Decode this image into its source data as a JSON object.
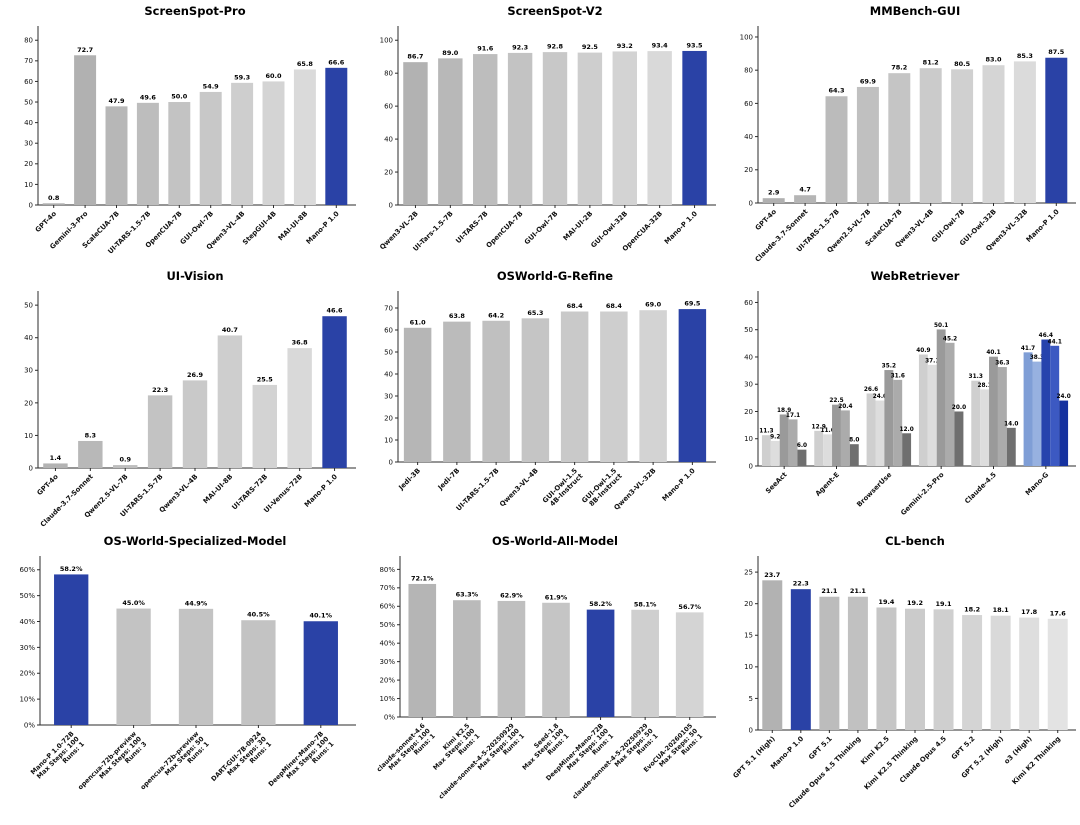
{
  "palette": {
    "highlight_blue": "#2a42a6",
    "axis_color": "#2b2b2b",
    "text_color": "#111111",
    "background": "#ffffff"
  },
  "chart_data": [
    {
      "id": "screenspot-pro",
      "type": "bar",
      "title": "ScreenSpot-Pro",
      "categories": [
        "GPT-4o",
        "Gemini-3-Pro",
        "ScaleCUA-7B",
        "UI-TARS-1.5-7B",
        "OpenCUA-7B",
        "GUI-Owl-7B",
        "Qwen3-VL-4B",
        "StepGUI-4B",
        "MAI-UI-8B",
        "Mano-P 1.0"
      ],
      "values": [
        0.8,
        72.7,
        47.9,
        49.6,
        50.0,
        54.9,
        59.3,
        60.0,
        65.8,
        66.6
      ],
      "highlight_indices": [
        9
      ],
      "ylim": [
        0,
        80
      ],
      "ytick_step": 10,
      "yscale_max": 84,
      "percent": false,
      "grid": false,
      "legend": "none",
      "gray_start": "#ababab",
      "gray_end": "#e0e0e0"
    },
    {
      "id": "screenspot-v2",
      "type": "bar",
      "title": "ScreenSpot-V2",
      "categories": [
        "Qwen3-VL-2B",
        "UI-Tars-1.5-7B",
        "UI-TARS-7B",
        "OpenCUA-7B",
        "GUI-Owl-7B",
        "MAI-UI-2B",
        "GUI-Owl-32B",
        "OpenCUA-32B",
        "Mano-P 1.0"
      ],
      "values": [
        86.7,
        89.0,
        91.6,
        92.3,
        92.8,
        92.5,
        93.2,
        93.4,
        93.5
      ],
      "highlight_indices": [
        8
      ],
      "ylim": [
        0,
        100
      ],
      "ytick_step": 20,
      "yscale_max": 105,
      "percent": false,
      "grid": false,
      "legend": "none",
      "gray_start": "#b2b2b2",
      "gray_end": "#dedede"
    },
    {
      "id": "mmbench-gui",
      "type": "bar",
      "title": "MMBench-GUI",
      "categories": [
        "GPT-4o",
        "Claude-3.7-Sonnet",
        "UI-TARS-1.5-7B",
        "Qwen2.5-VL-7B",
        "ScaleCUA-7B",
        "Qwen3-VL-4B",
        "GUI-Owl-7B",
        "GUI-Owl-32B",
        "Qwen3-VL-32B",
        "Mano-P 1.0"
      ],
      "values": [
        2.9,
        4.7,
        64.3,
        69.9,
        78.2,
        81.2,
        80.5,
        83.0,
        85.3,
        87.5
      ],
      "highlight_indices": [
        9
      ],
      "ylim": [
        0,
        100
      ],
      "ytick_step": 20,
      "yscale_max": 103,
      "percent": false,
      "grid": false,
      "legend": "none",
      "gray_start": "#b0b0b0",
      "gray_end": "#e0e0e0"
    },
    {
      "id": "ui-vision",
      "type": "bar",
      "title": "UI-Vision",
      "categories": [
        "GPT-4o",
        "Claude-3.7-Sonnet",
        "Qwen2.5-VL-7B",
        "UI-TARS-1.5-7B",
        "Qwen3-VL-4B",
        "MAI-UI-8B",
        "UI-TARS-72B",
        "UI-Venus-72B",
        "Mano-P 1.0"
      ],
      "values": [
        1.4,
        8.3,
        0.9,
        22.3,
        26.9,
        40.7,
        25.5,
        36.8,
        46.6
      ],
      "highlight_indices": [
        8
      ],
      "ylim": [
        0,
        50
      ],
      "ytick_step": 10,
      "yscale_max": 52.5,
      "percent": false,
      "grid": false,
      "legend": "none",
      "gray_start": "#b3b3b3",
      "gray_end": "#dedede"
    },
    {
      "id": "osworld-g-refine",
      "type": "bar",
      "title": "OSWorld-G-Refine",
      "categories": [
        "Jedi-3B",
        "Jedi-7B",
        "UI-TARS-1.5-7B",
        "Qwen3-VL-4B",
        "GUI-Owl-1.5\n4B-Instruct",
        "GUI-Owl-1.5\n8B-Instruct",
        "Qwen3-VL-32B",
        "Mano-P 1.0"
      ],
      "values": [
        61.0,
        63.8,
        64.2,
        65.3,
        68.4,
        68.4,
        69.0,
        69.5
      ],
      "highlight_indices": [
        7
      ],
      "ylim": [
        0,
        70
      ],
      "ytick_step": 10,
      "yscale_max": 75,
      "percent": false,
      "grid": false,
      "legend": "none",
      "gray_start": "#b6b6b6",
      "gray_end": "#d8d8d8"
    },
    {
      "id": "webretriever",
      "type": "grouped-bar",
      "title": "WebRetriever",
      "categories": [
        "SeeAct",
        "Agent-E",
        "BrowserUse",
        "Gemini-2.5-Pro",
        "Claude-4.5",
        "Mano-G"
      ],
      "series_values": [
        [
          11.3,
          9.2,
          18.9,
          17.1,
          6.0
        ],
        [
          12.9,
          11.6,
          22.5,
          20.4,
          8.0
        ],
        [
          26.6,
          24.0,
          35.2,
          31.6,
          12.0
        ],
        [
          40.9,
          37.1,
          50.1,
          45.2,
          20.0
        ],
        [
          31.3,
          28.1,
          40.1,
          36.3,
          14.0
        ],
        [
          41.7,
          38.3,
          46.4,
          44.1,
          24.0
        ]
      ],
      "highlight_groups": [
        5
      ],
      "group_gray_colors": [
        "#cfcfcf",
        "#dddddd",
        "#9a9a9a",
        "#ababab",
        "#6f6f6f"
      ],
      "group_highlight_colors": [
        "#7f9ed6",
        "#97b1e0",
        "#2643ad",
        "#3c59c2",
        "#16329f"
      ],
      "ylim": [
        0,
        60
      ],
      "ytick_step": 10,
      "yscale_max": 62,
      "percent": false,
      "grid": false,
      "legend": "none"
    },
    {
      "id": "os-world-specialized-model",
      "type": "bar",
      "title": "OS-World-Specialized-Model",
      "categories": [
        "Mano-P 1.0-72B\nMax Steps: 100\nRuns: 1",
        "opencua-72b-preview\nMax Steps: 100\nRuns: 3",
        "opencua-72b-preview\nMax Steps: 50\nRuns: 1",
        "DART-GUI-7B-0924\nMax Steps: 30\nRuns: 1",
        "DeepMiner-Mano-7B\nMax Steps: 100\nRuns: 1"
      ],
      "values": [
        58.2,
        45.0,
        44.9,
        40.5,
        40.1
      ],
      "highlight_indices": [
        0,
        4
      ],
      "ylim": [
        0,
        60
      ],
      "ytick_step": 10,
      "yscale_max": 63,
      "percent": true,
      "grid": false,
      "legend": "none",
      "gray_start": "#c3c3c3",
      "gray_end": "#c3c3c3"
    },
    {
      "id": "os-world-all-model",
      "type": "bar",
      "title": "OS-World-All-Model",
      "categories": [
        "claude-sonnet-4.6\nMax Steps: 100\nRuns: 1",
        "Kimi K2.5\nMax Steps: 100\nRuns: 1",
        "claude-sonnet-4-5-20250929\nMax Steps: 100\nRuns: 1",
        "Seed-1.8\nMax Steps: 100\nRuns: 1",
        "DeepMiner-Mano-72B\nMax Steps: 100\nRuns: 1",
        "claude-sonnet-4-5-20250929\nMax Steps: 50\nRuns: 1",
        "EvoCUA-20260105\nMax Steps: 50\nRuns: 1"
      ],
      "values": [
        72.1,
        63.3,
        62.9,
        61.9,
        58.2,
        58.1,
        56.7
      ],
      "highlight_indices": [
        4
      ],
      "ylim": [
        0,
        80
      ],
      "ytick_step": 10,
      "yscale_max": 84,
      "percent": true,
      "grid": false,
      "legend": "none",
      "gray_start": "#b5b5b5",
      "gray_end": "#d4d4d4"
    },
    {
      "id": "cl-bench",
      "type": "bar",
      "title": "CL-bench",
      "categories": [
        "GPT 5.1 (High)",
        "Mano-P 1.0",
        "GPT 5.1",
        "Claude Opus 4.5 Thinking",
        "Kimi K2.5",
        "Kimi K2.5 Thinking",
        "Claude Opus 4.5",
        "GPT 5.2",
        "GPT 5.2 (High)",
        "o3 (High)",
        "Kimi K2 Thinking"
      ],
      "values": [
        23.7,
        22.3,
        21.1,
        21.1,
        19.4,
        19.2,
        19.1,
        18.2,
        18.1,
        17.8,
        17.6
      ],
      "highlight_indices": [
        1
      ],
      "ylim": [
        0,
        25
      ],
      "ytick_step": 5,
      "yscale_max": 26.6,
      "percent": false,
      "grid": false,
      "legend": "none",
      "gray_start": "#b2b2b2",
      "gray_end": "#e3e3e3"
    }
  ]
}
